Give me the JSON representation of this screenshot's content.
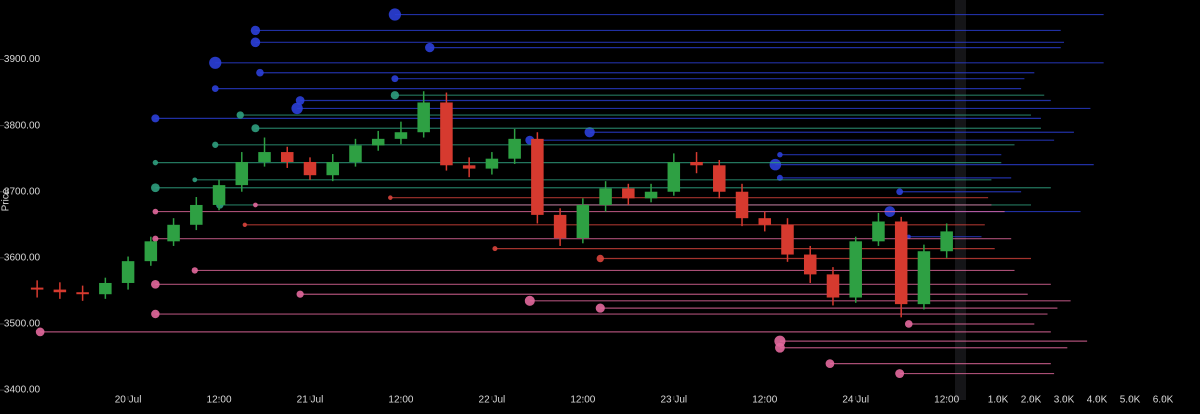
{
  "chart_data": {
    "type": "candlestick",
    "y_label": "Price",
    "xlim": [
      -16.9,
      109.1
    ],
    "xticks": [
      {
        "value": 0,
        "label": "20 Jul"
      },
      {
        "value": 12,
        "label": "12:00"
      },
      {
        "value": 24,
        "label": "21 Jul"
      },
      {
        "value": 36,
        "label": "12:00"
      },
      {
        "value": 48,
        "label": "22 Jul"
      },
      {
        "value": 60,
        "label": "12:00"
      },
      {
        "value": 72,
        "label": "23 Jul"
      },
      {
        "value": 84,
        "label": "12:00"
      },
      {
        "value": 96,
        "label": "24 Jul"
      },
      {
        "value": 108,
        "label": "12:00"
      }
    ],
    "ylim": [
      3385,
      3990
    ],
    "yticks": [
      {
        "value": 3400,
        "label": "3400.00"
      },
      {
        "value": 3500,
        "label": "3500.00"
      },
      {
        "value": 3600,
        "label": "3600.00"
      },
      {
        "value": 3700,
        "label": "3700.00"
      },
      {
        "value": 3800,
        "label": "3800.00"
      },
      {
        "value": 3900,
        "label": "3900.00"
      }
    ],
    "x2lim": [
      0,
      7.12
    ],
    "x2ticks": [
      {
        "value": 1,
        "label": "1.0K"
      },
      {
        "value": 2,
        "label": "2.0K"
      },
      {
        "value": 3,
        "label": "3.0K"
      },
      {
        "value": 4,
        "label": "4.0K"
      },
      {
        "value": 5,
        "label": "5.0K"
      },
      {
        "value": 6,
        "label": "6.0K"
      }
    ],
    "candles": {
      "up_color": "#2ea043",
      "down_color": "#d63a2f",
      "x": [
        -12,
        -9,
        -6,
        -3,
        0,
        3,
        6,
        9,
        12,
        15,
        18,
        21,
        24,
        27,
        30,
        33,
        36,
        39,
        42,
        45,
        48,
        51,
        54,
        57,
        60,
        63,
        66,
        69,
        72,
        75,
        78,
        81,
        84,
        87,
        90,
        93,
        96,
        99,
        102,
        105,
        108
      ],
      "open": [
        3555,
        3552,
        3548,
        3545,
        3562,
        3595,
        3625,
        3650,
        3680,
        3710,
        3745,
        3760,
        3745,
        3725,
        3745,
        3770,
        3780,
        3790,
        3835,
        3740,
        3735,
        3750,
        3780,
        3665,
        3630,
        3680,
        3705,
        3690,
        3700,
        3745,
        3740,
        3700,
        3660,
        3650,
        3605,
        3575,
        3540,
        3625,
        3655,
        3530,
        3610
      ],
      "high": [
        3566,
        3563,
        3558,
        3570,
        3602,
        3632,
        3660,
        3692,
        3718,
        3760,
        3782,
        3768,
        3752,
        3757,
        3780,
        3792,
        3806,
        3852,
        3850,
        3752,
        3760,
        3795,
        3790,
        3675,
        3690,
        3716,
        3712,
        3712,
        3758,
        3760,
        3748,
        3712,
        3670,
        3660,
        3618,
        3586,
        3632,
        3668,
        3662,
        3620,
        3652
      ],
      "low": [
        3540,
        3538,
        3535,
        3538,
        3552,
        3588,
        3618,
        3642,
        3672,
        3700,
        3738,
        3736,
        3718,
        3716,
        3738,
        3762,
        3772,
        3782,
        3732,
        3722,
        3726,
        3742,
        3652,
        3618,
        3622,
        3670,
        3680,
        3684,
        3694,
        3728,
        3690,
        3648,
        3640,
        3594,
        3562,
        3528,
        3532,
        3618,
        3510,
        3522,
        3600
      ],
      "close": [
        3552,
        3548,
        3545,
        3562,
        3595,
        3625,
        3650,
        3680,
        3710,
        3745,
        3760,
        3745,
        3725,
        3745,
        3770,
        3780,
        3790,
        3835,
        3740,
        3735,
        3750,
        3780,
        3665,
        3630,
        3680,
        3705,
        3690,
        3700,
        3745,
        3740,
        3700,
        3660,
        3650,
        3605,
        3575,
        3540,
        3625,
        3655,
        3530,
        3610,
        3640
      ]
    },
    "levels": [
      {
        "color": "#2b3fd8",
        "price": [
          3968,
          3944,
          3926,
          3918,
          3895,
          3880,
          3871,
          3856,
          3838,
          3826,
          3811,
          3790,
          3778,
          3756,
          3741,
          3721,
          3700,
          3670,
          3632
        ],
        "start": [
          35.2,
          16.8,
          16.8,
          39.8,
          11.5,
          17.4,
          35.2,
          11.5,
          22.7,
          22.3,
          3.6,
          60.9,
          53,
          86,
          85.4,
          86,
          101.8,
          100.5,
          103
        ],
        "size": [
          4.2,
          2.9,
          3.0,
          2.9,
          4.2,
          2.1,
          1.8,
          1.7,
          2.6,
          3.8,
          2.3,
          3.3,
          2.7,
          1.1,
          3.9,
          1.4,
          1.7,
          3.5,
          0.5
        ]
      },
      {
        "color": "#2f9e7e",
        "price": [
          3846,
          3816,
          3796,
          3771,
          3744,
          3718,
          3706,
          3680
        ],
        "start": [
          35.2,
          14.8,
          16.8,
          11.5,
          3.6,
          8.8,
          3.6,
          12.1
        ],
        "size": [
          2.4,
          2.0,
          2.3,
          1.5,
          1.1,
          0.8,
          2.6,
          2.0
        ]
      },
      {
        "color": "#d9443c",
        "price": [
          3691,
          3650,
          3614,
          3599
        ],
        "start": [
          34.6,
          15.4,
          48.4,
          62.3
        ],
        "size": [
          0.7,
          0.6,
          0.9,
          2.0
        ]
      },
      {
        "color": "#e2689c",
        "price": [
          3680,
          3670,
          3629,
          3581,
          3560,
          3545,
          3535,
          3524,
          3515,
          3500,
          3488,
          3474,
          3464,
          3440,
          3425
        ],
        "start": [
          16.8,
          3.6,
          3.6,
          8.8,
          3.6,
          22.7,
          53,
          62.3,
          3.6,
          103,
          -11.6,
          86,
          86,
          92.6,
          101.8
        ],
        "size": [
          0.8,
          1.2,
          1.4,
          1.5,
          2.6,
          1.9,
          3.2,
          2.8,
          2.5,
          2.1,
          2.6,
          3.7,
          3.1,
          2.6,
          2.7
        ]
      }
    ]
  }
}
